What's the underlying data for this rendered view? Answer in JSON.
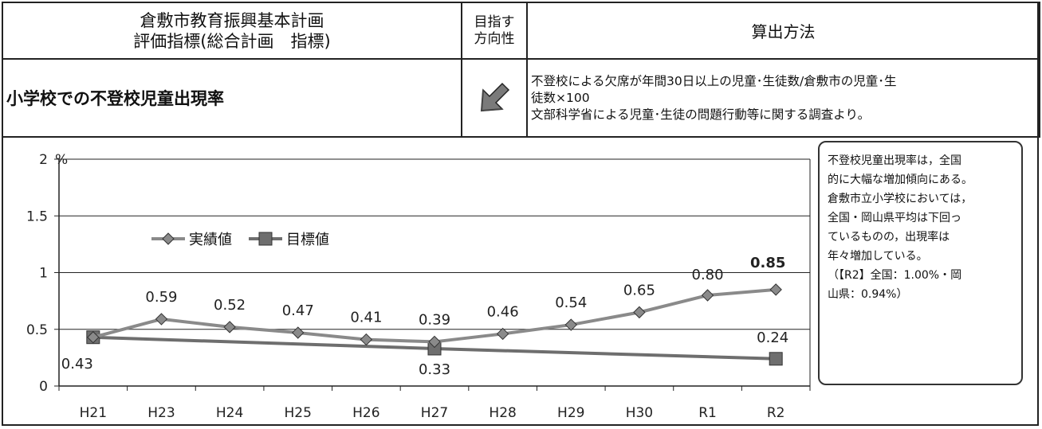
{
  "header": {
    "title_line1": "倉敷市教育振興基本計画",
    "title_line2": "評価指標(総合計画　指標)",
    "direction_line1": "目指す",
    "direction_line2": "方向性",
    "calc_header": "算出方法"
  },
  "indicator": {
    "name": "小学校での不登校児童出現率",
    "direction_icon": "arrow-down-left-icon",
    "calc_line1": "不登校による欠席が年間30日以上の児童･生徒数/倉敷市の児童･生",
    "calc_line2": "徒数×100",
    "calc_line3": "文部科学省による児童･生徒の問題行動等に関する調査より。"
  },
  "note": {
    "lines": [
      "不登校児童出現率は，全国",
      "的に大幅な増加傾向にある。",
      "倉敷市立小学校においては，",
      "全国・岡山県平均は下回っ",
      "ているものの，出現率は",
      "年々増加している。",
      "（【R2】全国：1.00%・岡",
      "山県：0.94%）"
    ]
  },
  "colors": {
    "actual": "#8a8a8a",
    "target": "#6e6e6e",
    "axis": "#222222"
  },
  "chart_data": {
    "type": "line",
    "unit": "%",
    "categories": [
      "H21",
      "H23",
      "H24",
      "H25",
      "H26",
      "H27",
      "H28",
      "H29",
      "H30",
      "R1",
      "R2"
    ],
    "ylim": [
      0,
      2
    ],
    "yticks": [
      "0",
      "0.5",
      "1",
      "1.5",
      "2"
    ],
    "legend_position": "top-left",
    "series": [
      {
        "name": "実績値",
        "marker": "diamond",
        "values": [
          0.43,
          0.59,
          0.52,
          0.47,
          0.41,
          0.39,
          0.46,
          0.54,
          0.65,
          0.8,
          0.85
        ],
        "labels": [
          "0.43",
          "0.59",
          "0.52",
          "0.47",
          "0.41",
          "0.39",
          "0.46",
          "0.54",
          "0.65",
          "0.80",
          "0.85"
        ]
      },
      {
        "name": "目標値",
        "marker": "square",
        "points": [
          {
            "category": "H21",
            "value": 0.43
          },
          {
            "category": "H27",
            "value": 0.33,
            "label": "0.33"
          },
          {
            "category": "R2",
            "value": 0.24,
            "label": "0.24"
          }
        ]
      }
    ]
  }
}
